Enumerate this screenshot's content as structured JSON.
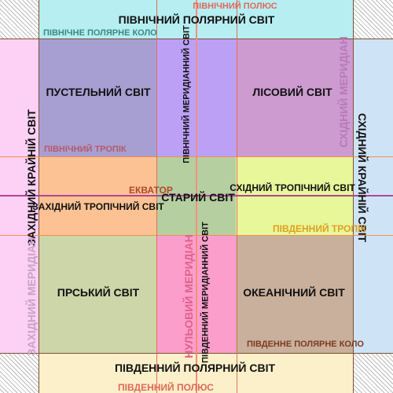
{
  "colors": {
    "north_polar": "#b6eef2",
    "south_polar": "#fbf0c9",
    "west_frontier": "#fdd0f5",
    "east_frontier": "#cfe3f7",
    "desert": "#a79fd2",
    "north_meridional": "#bca0f6",
    "forest": "#cd9bd0",
    "west_tropical": "#fcc293",
    "old_world": "#b5cfa1",
    "east_tropical": "#e7f79a",
    "persian": "#ccd6a8",
    "south_meridional": "#fc9ecc",
    "oceanic": "#c9b09c",
    "line_red": "#e0705d",
    "line_brown": "#7d5030",
    "line_magenta": "#b04696",
    "line_orange": "#f09050",
    "corner_hatch": "#bbbbbb"
  },
  "labels": {
    "north_polar_world": "ПІВНІЧНИЙ ПОЛЯРНИЙ СВІТ",
    "north_pole": "ПІВНІЧНИЙ ПОЛЮС",
    "arctic_circle": "ПІВНІЧНЕ ПОЛЯРНЕ КОЛО",
    "desert_world": "ПУСТЕЛЬНИЙ СВІТ",
    "north_meridional_world": "ПІВНІЧНИЙ МЕРИДІАННИЙ СВІТ",
    "forest_world": "ЛІСОВИЙ СВІТ",
    "east_meridian": "СХІДНИЙ МЕРИДІАН",
    "east_frontier_world": "СХІДНИЙ КРАЙНІЙ СВІТ",
    "west_frontier_world": "ЗАХІДНИЙ КРАЙНІЙ СВІТ",
    "tropic_north": "ПІВНІЧНИЙ ТРОПІК",
    "equator": "ЕКВАТОР",
    "west_tropical_world": "ЗАХІДНИЙ ТРОПІЧНИЙ СВІТ",
    "old_world": "СТАРИЙ СВІТ",
    "east_tropical_world": "СХІДНИЙ ТРОПІЧНИЙ СВІТ",
    "tropic_south": "ПІВДЕННИЙ ТРОПІК",
    "west_meridian": "ЗАХІДНИЙ МЕРИДІАН",
    "persian_world": "ПРСЬКИЙ СВІТ",
    "zero_meridian": "НУЛЬОВИЙ МЕРИДІАН",
    "south_meridional_world": "ПІВДЕННИЙ МЕРИДІАННИЙ СВІТ",
    "oceanic_world": "ОКЕАНІЧНИЙ СВІТ",
    "antarctic_circle": "ПІВДЕННЕ ПОЛЯРНЕ КОЛО",
    "south_polar_world": "ПІВДЕННИЙ ПОЛЯРНИЙ СВІТ",
    "south_pole": "ПІВДЕННИЙ ПОЛЮС"
  }
}
